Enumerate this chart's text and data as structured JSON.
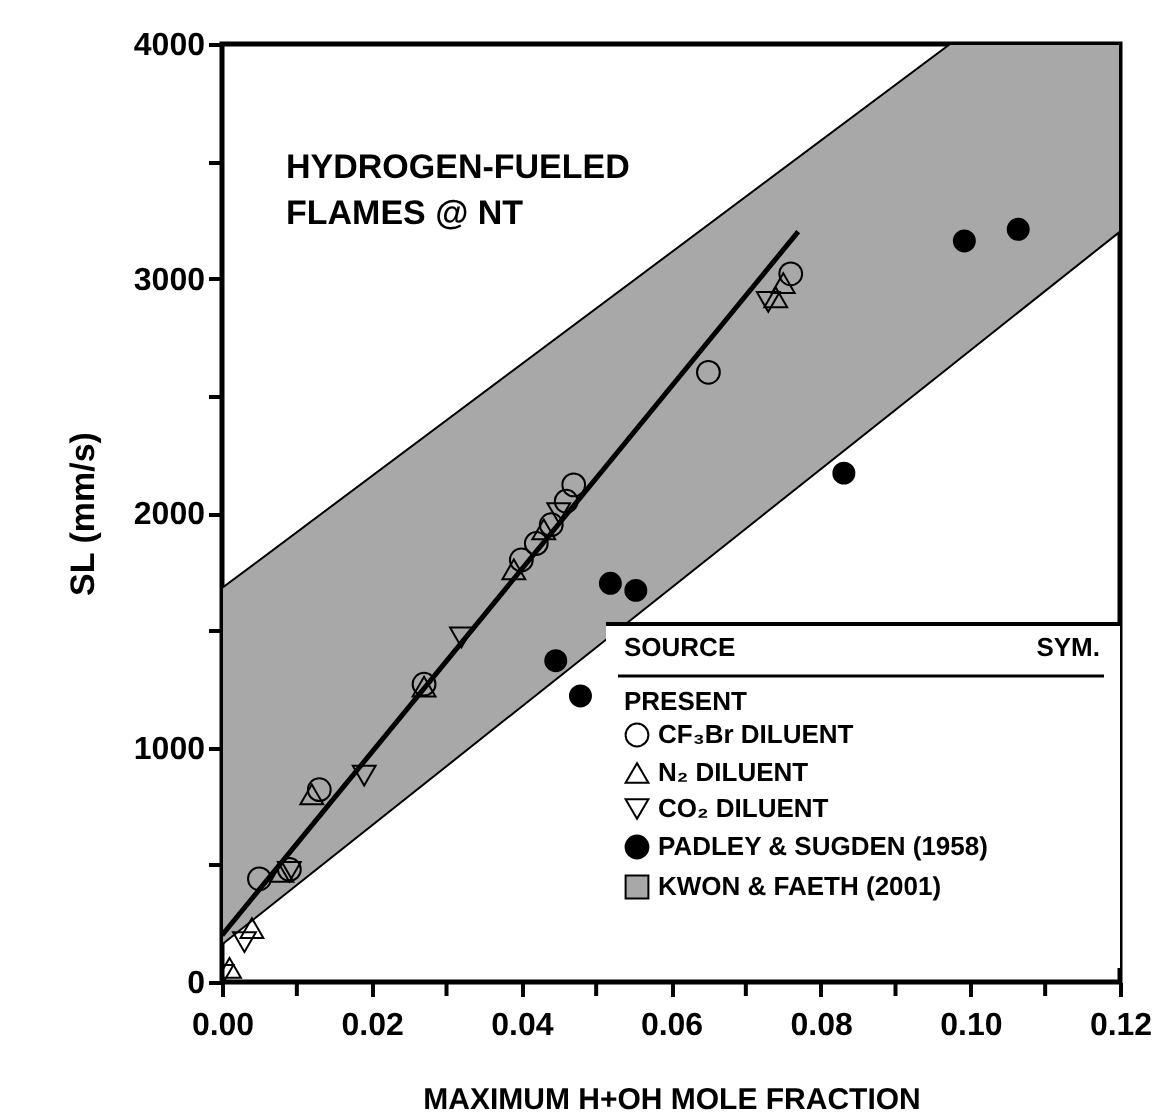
{
  "chart_data": {
    "type": "scatter",
    "xlabel": "MAXIMUM H+OH MOLE FRACTION",
    "ylabel": "SL (mm/s)",
    "xlim": [
      0,
      0.12
    ],
    "ylim": [
      0,
      4000
    ],
    "xticks": [
      {
        "value": 0,
        "label": "0.00"
      },
      {
        "value": 0.01,
        "label": null
      },
      {
        "value": 0.02,
        "label": "0.02"
      },
      {
        "value": 0.03,
        "label": null
      },
      {
        "value": 0.04,
        "label": "0.04"
      },
      {
        "value": 0.05,
        "label": null
      },
      {
        "value": 0.06,
        "label": "0.06"
      },
      {
        "value": 0.07,
        "label": null
      },
      {
        "value": 0.08,
        "label": "0.08"
      },
      {
        "value": 0.09,
        "label": null
      },
      {
        "value": 0.1,
        "label": "0.10"
      },
      {
        "value": 0.11,
        "label": null
      },
      {
        "value": 0.12,
        "label": "0.12"
      }
    ],
    "yticks": [
      0,
      {
        "value": 500,
        "label": null
      },
      1000,
      {
        "value": 1500,
        "label": null
      },
      2000,
      {
        "value": 2500,
        "label": null
      },
      3000,
      {
        "value": 3500,
        "label": null
      },
      4000
    ],
    "grid": false,
    "legend": "bottom right",
    "legend_title": "SOURCE",
    "annotations": [
      "HYDROGEN-FUELED\nFLAMES @ NT",
      "SYM.",
      "PRESENT"
    ],
    "series": [
      {
        "name": "CF₃Br DILUENT",
        "marker": "circle-open",
        "color": "#000000",
        "x": [
          0.005,
          0.009,
          0.013,
          0.027,
          0.04,
          0.042,
          0.044,
          0.046,
          0.047,
          0.065,
          0.076
        ],
        "values": [
          440,
          480,
          820,
          1270,
          1800,
          1870,
          1950,
          2050,
          2120,
          2600,
          3020
        ]
      },
      {
        "name": "N₂ DILUENT",
        "marker": "triangle-open",
        "color": "#000000",
        "x": [
          0.001,
          0.004,
          0.008,
          0.012,
          0.027,
          0.039,
          0.043,
          0.074,
          0.075
        ],
        "values": [
          60,
          230,
          470,
          800,
          1260,
          1760,
          1930,
          2920,
          2980
        ]
      },
      {
        "name": "CO₂ DILUENT",
        "marker": "triangle-down-open",
        "color": "#000000",
        "x": [
          0.0,
          0.003,
          0.009,
          0.019,
          0.032,
          0.045,
          0.073
        ],
        "values": [
          30,
          170,
          470,
          880,
          1470,
          2000,
          2900
        ]
      },
      {
        "name": "PADLEY & SUGDEN (1958)",
        "marker": "circle",
        "color": "#000000",
        "x": [
          0.0446,
          0.0479,
          0.0519,
          0.0553,
          0.0831,
          0.0992,
          0.1064
        ],
        "values": [
          1370,
          1220,
          1700,
          1670,
          2170,
          3160,
          3210
        ]
      },
      {
        "name": "KWON & FAETH (2001)",
        "type": "area",
        "color": "#a8a8a8",
        "x": [
          0,
          0.0973,
          0.12
        ],
        "values": [
          null,
          null,
          null
        ],
        "lower": [
          160,
          2625,
          3200
        ],
        "upper": [
          1680,
          4000,
          4000
        ]
      },
      {
        "type": "line",
        "color": "#000000",
        "x": [
          0,
          0.077
        ],
        "values": [
          200,
          3200
        ],
        "line_style": "solid"
      }
    ]
  }
}
